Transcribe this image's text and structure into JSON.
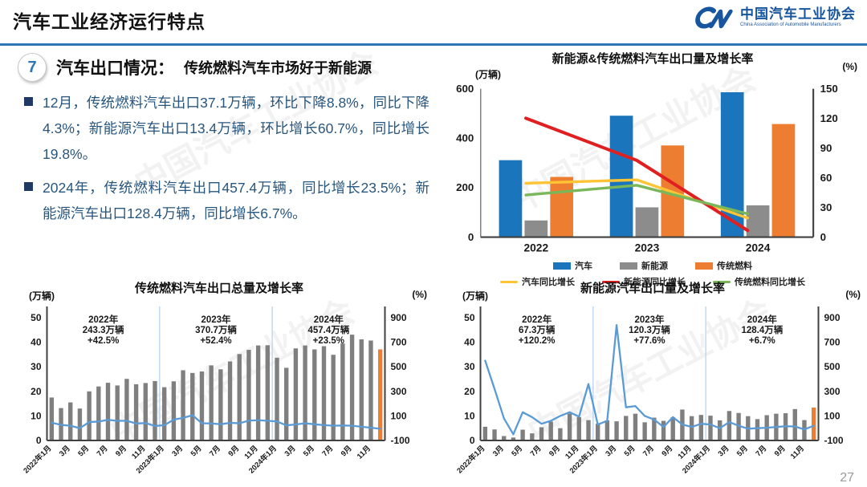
{
  "page": {
    "number": "27"
  },
  "header": {
    "title": "汽车工业经济运行特点",
    "logo": {
      "name_cn": "中国汽车工业协会",
      "name_en": "China Association of Automobile Manufacturers"
    }
  },
  "section": {
    "number": "7",
    "title": "汽车出口情况：",
    "subtitle": "传统燃料汽车市场好于新能源"
  },
  "bullets": [
    "12月，传统燃料汽车出口37.1万辆，环比下降8.8%，同比下降4.3%；新能源汽车出口13.4万辆，环比增长60.7%，同比增长19.8%。",
    "2024年，传统燃料汽车出口457.4万辆，同比增长23.5%；新能源汽车出口128.4万辆，同比增长6.7%。"
  ],
  "watermark": "中国汽车工业协会",
  "colors": {
    "accent_blue": "#2E75B6",
    "bar_blue": "#1B75BC",
    "bar_gray": "#8C8C8C",
    "bar_orange": "#ED7D31",
    "line_yellow": "#FFC433",
    "line_red": "#E02020",
    "line_green": "#79B75A",
    "line_blue": "#5B9BD5",
    "text_navy": "#28567D",
    "divider": "#BDD7EE",
    "axis": "#404040"
  },
  "chart_data": [
    {
      "id": "nev-vs-fuel-yearly",
      "type": "bar",
      "title": "新能源&传统燃料汽车出口量及增长率",
      "left_axis": {
        "label": "(万辆)",
        "min": 0,
        "max": 600,
        "ticks": [
          0,
          200,
          400,
          600
        ]
      },
      "right_axis": {
        "label": "(%)",
        "min": 0,
        "max": 150,
        "ticks": [
          0,
          30,
          60,
          90,
          120,
          150
        ]
      },
      "categories": [
        "2022",
        "2023",
        "2024"
      ],
      "bar_series": [
        {
          "name": "汽车",
          "color": "#1B75BC",
          "values": [
            311.1,
            491.0,
            585.9
          ]
        },
        {
          "name": "新能源",
          "color": "#8C8C8C",
          "values": [
            67.3,
            120.3,
            128.4
          ]
        },
        {
          "name": "传统燃料",
          "color": "#ED7D31",
          "values": [
            243.3,
            370.7,
            457.4
          ]
        }
      ],
      "line_series": [
        {
          "name": "汽车同比增长",
          "color": "#FFC433",
          "values": [
            54.4,
            57.9,
            19.3
          ]
        },
        {
          "name": "新能源同比增长",
          "color": "#E02020",
          "values": [
            120.2,
            77.6,
            6.7
          ]
        },
        {
          "name": "传统燃料同比增长",
          "color": "#79B75A",
          "values": [
            42.5,
            52.4,
            23.5
          ]
        }
      ],
      "legend_position": "bottom"
    },
    {
      "id": "fuel-monthly",
      "type": "bar",
      "title": "传统燃料汽车出口总量及增长率",
      "left_axis": {
        "label": "(万辆)",
        "min": 0,
        "max": 50,
        "ticks": [
          0,
          10,
          20,
          30,
          40,
          50
        ]
      },
      "right_axis": {
        "label": "(%)",
        "min": -100,
        "max": 900,
        "ticks": [
          -100,
          100,
          300,
          500,
          700,
          900
        ]
      },
      "x_tick_labels": [
        "2022年1月",
        "3月",
        "5月",
        "7月",
        "9月",
        "11月",
        "2023年1月",
        "3月",
        "5月",
        "7月",
        "9月",
        "11月",
        "2024年1月",
        "3月",
        "5月",
        "7月",
        "9月",
        "11月"
      ],
      "bars": {
        "name": "出口量",
        "color": "#7F7F7F",
        "last_color": "#ED7D31",
        "values": [
          17.5,
          13.2,
          15.5,
          13.0,
          20.0,
          22.0,
          23.5,
          22.4,
          25.1,
          22.9,
          23.4,
          24.2,
          21.7,
          24.1,
          28.6,
          27.5,
          28.1,
          30.6,
          29.0,
          32.2,
          35.2,
          36.9,
          38.7,
          38.8,
          33.7,
          29.6,
          37.5,
          38.7,
          37.1,
          38.4,
          34.9,
          39.5,
          43.1,
          41.2,
          40.7,
          37.1
        ]
      },
      "line": {
        "name": "增长率",
        "color": "#5B9BD5",
        "values": [
          45,
          27,
          20,
          0,
          50,
          54,
          68,
          60,
          60,
          38,
          42,
          18,
          24,
          70,
          84,
          106,
          40,
          39,
          32,
          44,
          40,
          62,
          65,
          60,
          55,
          23,
          31,
          40,
          32,
          25,
          20,
          22,
          20,
          12,
          4,
          -4.3
        ]
      },
      "annotations": [
        {
          "label": "2022年",
          "value": "243.3万辆",
          "growth": "+42.5%"
        },
        {
          "label": "2023年",
          "value": "370.7万辆",
          "growth": "+52.4%"
        },
        {
          "label": "2024年",
          "value": "457.4万辆",
          "growth": "+23.5%"
        }
      ],
      "dividers_after": [
        12,
        24
      ]
    },
    {
      "id": "nev-monthly",
      "type": "bar",
      "title": "新能源汽车出口量及增长率",
      "left_axis": {
        "label": "(万辆)",
        "min": 0,
        "max": 50,
        "ticks": [
          0,
          10,
          20,
          30,
          40,
          50
        ]
      },
      "right_axis": {
        "label": "(%)",
        "min": -100,
        "max": 900,
        "ticks": [
          -100,
          100,
          300,
          500,
          700,
          900
        ]
      },
      "x_tick_labels": [
        "2022年1月",
        "3月",
        "5月",
        "7月",
        "9月",
        "11月",
        "2023年1月",
        "3月",
        "5月",
        "7月",
        "9月",
        "11月",
        "2024年1月",
        "3月",
        "5月",
        "7月",
        "9月",
        "11月"
      ],
      "bars": {
        "name": "出口量",
        "color": "#7F7F7F",
        "last_color": "#ED7D31",
        "values": [
          5.6,
          4.5,
          1.8,
          1.2,
          4.4,
          2.9,
          5.4,
          7.7,
          5.0,
          10.9,
          9.5,
          8.3,
          6.8,
          8.2,
          7.8,
          10.0,
          10.9,
          7.4,
          9.3,
          8.0,
          9.5,
          12.6,
          9.9,
          10.4,
          10.1,
          8.2,
          12.0,
          11.2,
          9.9,
          8.7,
          10.3,
          10.9,
          11.1,
          12.8,
          8.3,
          13.4
        ]
      },
      "line": {
        "name": "增长率",
        "color": "#5B9BD5",
        "values": [
          550,
          320,
          80,
          -50,
          130,
          90,
          36,
          60,
          100,
          130,
          94,
          360,
          30,
          60,
          840,
          170,
          180,
          100,
          70,
          10,
          90,
          30,
          10,
          36,
          30,
          0,
          50,
          20,
          -4,
          0,
          4,
          10,
          16,
          14,
          -10,
          19.8
        ]
      },
      "annotations": [
        {
          "label": "2022年",
          "value": "67.3万辆",
          "growth": "+120.2%"
        },
        {
          "label": "2023年",
          "value": "120.3万辆",
          "growth": "+77.6%"
        },
        {
          "label": "2024年",
          "value": "128.4万辆",
          "growth": "+6.7%"
        }
      ],
      "dividers_after": [
        12,
        24
      ]
    }
  ]
}
